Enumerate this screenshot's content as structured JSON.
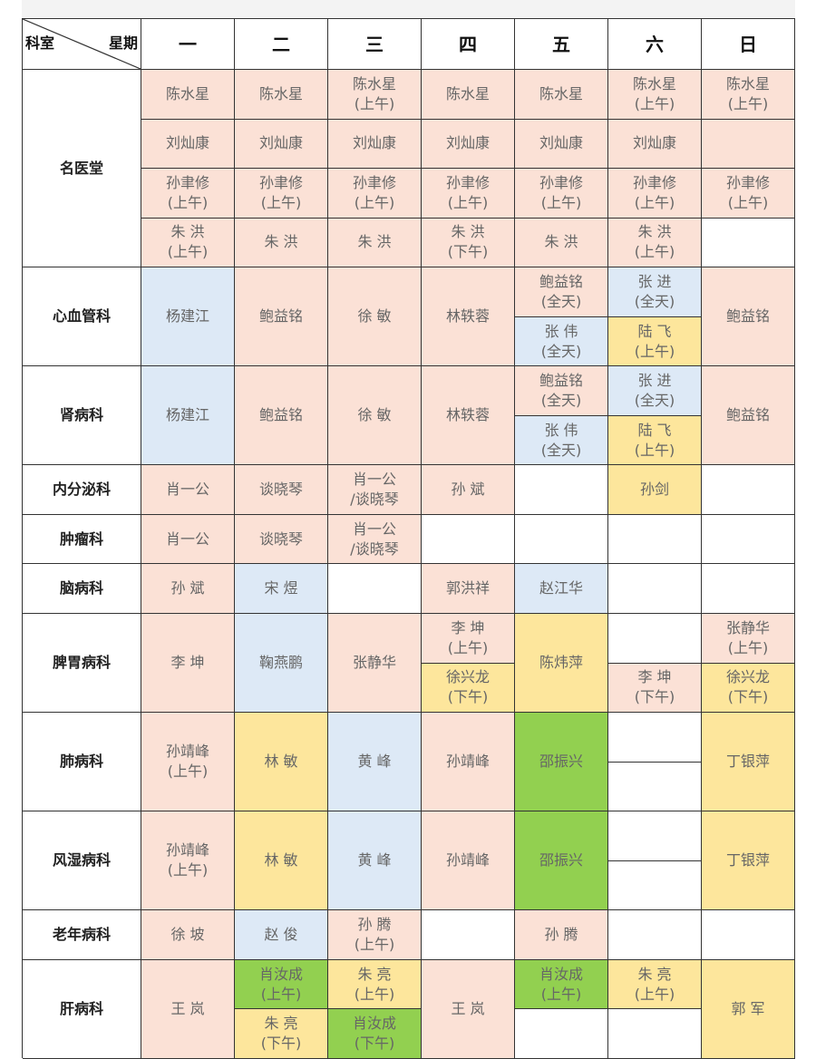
{
  "colors": {
    "pink": "#fbe1d6",
    "blue": "#dde9f6",
    "yellow": "#fde69c",
    "green": "#92d050",
    "white": "#ffffff"
  },
  "header": {
    "corner_left": "科室",
    "corner_right": "星期",
    "days": [
      "一",
      "二",
      "三",
      "四",
      "五",
      "六",
      "日"
    ]
  },
  "departments": [
    {
      "name": "名医堂",
      "slots": 4,
      "cells": [
        {
          "day": 0,
          "slot": 0,
          "span": 1,
          "name": "陈水星",
          "note": "",
          "color": "pink"
        },
        {
          "day": 1,
          "slot": 0,
          "span": 1,
          "name": "陈水星",
          "note": "",
          "color": "pink"
        },
        {
          "day": 2,
          "slot": 0,
          "span": 1,
          "name": "陈水星",
          "note": "(上午)",
          "color": "pink"
        },
        {
          "day": 3,
          "slot": 0,
          "span": 1,
          "name": "陈水星",
          "note": "",
          "color": "pink"
        },
        {
          "day": 4,
          "slot": 0,
          "span": 1,
          "name": "陈水星",
          "note": "",
          "color": "pink"
        },
        {
          "day": 5,
          "slot": 0,
          "span": 1,
          "name": "陈水星",
          "note": "(上午)",
          "color": "pink"
        },
        {
          "day": 6,
          "slot": 0,
          "span": 1,
          "name": "陈水星",
          "note": "(上午)",
          "color": "pink"
        },
        {
          "day": 0,
          "slot": 1,
          "span": 1,
          "name": "刘灿康",
          "note": "",
          "color": "pink"
        },
        {
          "day": 1,
          "slot": 1,
          "span": 1,
          "name": "刘灿康",
          "note": "",
          "color": "pink"
        },
        {
          "day": 2,
          "slot": 1,
          "span": 1,
          "name": "刘灿康",
          "note": "",
          "color": "pink"
        },
        {
          "day": 3,
          "slot": 1,
          "span": 1,
          "name": "刘灿康",
          "note": "",
          "color": "pink"
        },
        {
          "day": 4,
          "slot": 1,
          "span": 1,
          "name": "刘灿康",
          "note": "",
          "color": "pink"
        },
        {
          "day": 5,
          "slot": 1,
          "span": 1,
          "name": "刘灿康",
          "note": "",
          "color": "pink"
        },
        {
          "day": 6,
          "slot": 1,
          "span": 1,
          "name": "",
          "note": "",
          "color": "pink"
        },
        {
          "day": 0,
          "slot": 2,
          "span": 1,
          "name": "孙聿修",
          "note": "(上午)",
          "color": "pink"
        },
        {
          "day": 1,
          "slot": 2,
          "span": 1,
          "name": "孙聿修",
          "note": "(上午)",
          "color": "pink"
        },
        {
          "day": 2,
          "slot": 2,
          "span": 1,
          "name": "孙聿修",
          "note": "(上午)",
          "color": "pink"
        },
        {
          "day": 3,
          "slot": 2,
          "span": 1,
          "name": "孙聿修",
          "note": "(上午)",
          "color": "pink"
        },
        {
          "day": 4,
          "slot": 2,
          "span": 1,
          "name": "孙聿修",
          "note": "(上午)",
          "color": "pink"
        },
        {
          "day": 5,
          "slot": 2,
          "span": 1,
          "name": "孙聿修",
          "note": "(上午)",
          "color": "pink"
        },
        {
          "day": 6,
          "slot": 2,
          "span": 1,
          "name": "孙聿修",
          "note": "(上午)",
          "color": "pink"
        },
        {
          "day": 0,
          "slot": 3,
          "span": 1,
          "name": "朱 洪",
          "note": "(上午)",
          "color": "pink"
        },
        {
          "day": 1,
          "slot": 3,
          "span": 1,
          "name": "朱 洪",
          "note": "",
          "color": "pink"
        },
        {
          "day": 2,
          "slot": 3,
          "span": 1,
          "name": "朱 洪",
          "note": "",
          "color": "pink"
        },
        {
          "day": 3,
          "slot": 3,
          "span": 1,
          "name": "朱 洪",
          "note": "(下午)",
          "color": "pink"
        },
        {
          "day": 4,
          "slot": 3,
          "span": 1,
          "name": "朱 洪",
          "note": "",
          "color": "pink"
        },
        {
          "day": 5,
          "slot": 3,
          "span": 1,
          "name": "朱 洪",
          "note": "(上午)",
          "color": "pink"
        }
      ]
    },
    {
      "name": "心血管科",
      "slots": 2,
      "cells": [
        {
          "day": 0,
          "slot": 0,
          "span": 2,
          "name": "杨建江",
          "note": "",
          "color": "blue"
        },
        {
          "day": 1,
          "slot": 0,
          "span": 2,
          "name": "鲍益铭",
          "note": "",
          "color": "pink"
        },
        {
          "day": 2,
          "slot": 0,
          "span": 2,
          "name": "徐 敏",
          "note": "",
          "color": "pink"
        },
        {
          "day": 3,
          "slot": 0,
          "span": 2,
          "name": "林轶蓉",
          "note": "",
          "color": "pink"
        },
        {
          "day": 4,
          "slot": 0,
          "span": 1,
          "name": "鲍益铭",
          "note": "(全天)",
          "color": "pink"
        },
        {
          "day": 4,
          "slot": 1,
          "span": 1,
          "name": "张 伟",
          "note": "(全天)",
          "color": "blue"
        },
        {
          "day": 5,
          "slot": 0,
          "span": 1,
          "name": "张 进",
          "note": "(全天)",
          "color": "blue"
        },
        {
          "day": 5,
          "slot": 1,
          "span": 1,
          "name": "陆 飞",
          "note": "(上午)",
          "color": "yellow"
        },
        {
          "day": 6,
          "slot": 0,
          "span": 2,
          "name": "鲍益铭",
          "note": "",
          "color": "pink"
        }
      ]
    },
    {
      "name": "肾病科",
      "slots": 2,
      "cells": [
        {
          "day": 0,
          "slot": 0,
          "span": 2,
          "name": "杨建江",
          "note": "",
          "color": "blue"
        },
        {
          "day": 1,
          "slot": 0,
          "span": 2,
          "name": "鲍益铭",
          "note": "",
          "color": "pink"
        },
        {
          "day": 2,
          "slot": 0,
          "span": 2,
          "name": "徐 敏",
          "note": "",
          "color": "pink"
        },
        {
          "day": 3,
          "slot": 0,
          "span": 2,
          "name": "林轶蓉",
          "note": "",
          "color": "pink"
        },
        {
          "day": 4,
          "slot": 0,
          "span": 1,
          "name": "鲍益铭",
          "note": "(全天)",
          "color": "pink"
        },
        {
          "day": 4,
          "slot": 1,
          "span": 1,
          "name": "张 伟",
          "note": "(全天)",
          "color": "blue"
        },
        {
          "day": 5,
          "slot": 0,
          "span": 1,
          "name": "张 进",
          "note": "(全天)",
          "color": "blue"
        },
        {
          "day": 5,
          "slot": 1,
          "span": 1,
          "name": "陆 飞",
          "note": "(上午)",
          "color": "yellow"
        },
        {
          "day": 6,
          "slot": 0,
          "span": 2,
          "name": "鲍益铭",
          "note": "",
          "color": "pink"
        }
      ]
    },
    {
      "name": "内分泌科",
      "slots": 1,
      "cells": [
        {
          "day": 0,
          "slot": 0,
          "span": 1,
          "name": "肖一公",
          "note": "",
          "color": "pink"
        },
        {
          "day": 1,
          "slot": 0,
          "span": 1,
          "name": "谈晓琴",
          "note": "",
          "color": "pink"
        },
        {
          "day": 2,
          "slot": 0,
          "span": 1,
          "name": "肖一公",
          "note": "/谈晓琴",
          "color": "pink"
        },
        {
          "day": 3,
          "slot": 0,
          "span": 1,
          "name": "孙 斌",
          "note": "",
          "color": "pink"
        },
        {
          "day": 5,
          "slot": 0,
          "span": 1,
          "name": "孙剑",
          "note": "",
          "color": "yellow"
        }
      ]
    },
    {
      "name": "肿瘤科",
      "slots": 1,
      "cells": [
        {
          "day": 0,
          "slot": 0,
          "span": 1,
          "name": "肖一公",
          "note": "",
          "color": "pink"
        },
        {
          "day": 1,
          "slot": 0,
          "span": 1,
          "name": "谈晓琴",
          "note": "",
          "color": "pink"
        },
        {
          "day": 2,
          "slot": 0,
          "span": 1,
          "name": "肖一公",
          "note": "/谈晓琴",
          "color": "pink"
        }
      ]
    },
    {
      "name": "脑病科",
      "slots": 1,
      "cells": [
        {
          "day": 0,
          "slot": 0,
          "span": 1,
          "name": "孙 斌",
          "note": "",
          "color": "pink"
        },
        {
          "day": 1,
          "slot": 0,
          "span": 1,
          "name": "宋 煜",
          "note": "",
          "color": "blue"
        },
        {
          "day": 3,
          "slot": 0,
          "span": 1,
          "name": "郭洪祥",
          "note": "",
          "color": "pink"
        },
        {
          "day": 4,
          "slot": 0,
          "span": 1,
          "name": "赵江华",
          "note": "",
          "color": "blue"
        }
      ]
    },
    {
      "name": "脾胃病科",
      "slots": 2,
      "cells": [
        {
          "day": 0,
          "slot": 0,
          "span": 2,
          "name": "李 坤",
          "note": "",
          "color": "pink"
        },
        {
          "day": 1,
          "slot": 0,
          "span": 2,
          "name": "鞠燕鹏",
          "note": "",
          "color": "blue"
        },
        {
          "day": 2,
          "slot": 0,
          "span": 2,
          "name": "张静华",
          "note": "",
          "color": "pink"
        },
        {
          "day": 3,
          "slot": 0,
          "span": 1,
          "name": "李 坤",
          "note": "(上午)",
          "color": "pink"
        },
        {
          "day": 3,
          "slot": 1,
          "span": 1,
          "name": "徐兴龙",
          "note": "(下午)",
          "color": "yellow"
        },
        {
          "day": 4,
          "slot": 0,
          "span": 2,
          "name": "陈炜萍",
          "note": "",
          "color": "yellow"
        },
        {
          "day": 5,
          "slot": 1,
          "span": 1,
          "name": "李 坤",
          "note": "(下午)",
          "color": "pink"
        },
        {
          "day": 6,
          "slot": 0,
          "span": 1,
          "name": "张静华",
          "note": "(上午)",
          "color": "pink"
        },
        {
          "day": 6,
          "slot": 1,
          "span": 1,
          "name": "徐兴龙",
          "note": "(下午)",
          "color": "yellow"
        }
      ]
    },
    {
      "name": "肺病科",
      "slots": 2,
      "cells": [
        {
          "day": 0,
          "slot": 0,
          "span": 2,
          "name": "孙靖峰",
          "note": "(上午)",
          "color": "pink"
        },
        {
          "day": 1,
          "slot": 0,
          "span": 2,
          "name": "林 敏",
          "note": "",
          "color": "yellow"
        },
        {
          "day": 2,
          "slot": 0,
          "span": 2,
          "name": "黄 峰",
          "note": "",
          "color": "blue"
        },
        {
          "day": 3,
          "slot": 0,
          "span": 2,
          "name": "孙靖峰",
          "note": "",
          "color": "pink"
        },
        {
          "day": 4,
          "slot": 0,
          "span": 2,
          "name": "邵振兴",
          "note": "",
          "color": "green"
        },
        {
          "day": 6,
          "slot": 0,
          "span": 2,
          "name": "丁银萍",
          "note": "",
          "color": "yellow"
        }
      ]
    },
    {
      "name": "风湿病科",
      "slots": 2,
      "cells": [
        {
          "day": 0,
          "slot": 0,
          "span": 2,
          "name": "孙靖峰",
          "note": "(上午)",
          "color": "pink"
        },
        {
          "day": 1,
          "slot": 0,
          "span": 2,
          "name": "林 敏",
          "note": "",
          "color": "yellow"
        },
        {
          "day": 2,
          "slot": 0,
          "span": 2,
          "name": "黄 峰",
          "note": "",
          "color": "blue"
        },
        {
          "day": 3,
          "slot": 0,
          "span": 2,
          "name": "孙靖峰",
          "note": "",
          "color": "pink"
        },
        {
          "day": 4,
          "slot": 0,
          "span": 2,
          "name": "邵振兴",
          "note": "",
          "color": "green"
        },
        {
          "day": 6,
          "slot": 0,
          "span": 2,
          "name": "丁银萍",
          "note": "",
          "color": "yellow"
        }
      ]
    },
    {
      "name": "老年病科",
      "slots": 1,
      "cells": [
        {
          "day": 0,
          "slot": 0,
          "span": 1,
          "name": "徐 坡",
          "note": "",
          "color": "pink"
        },
        {
          "day": 1,
          "slot": 0,
          "span": 1,
          "name": "赵 俊",
          "note": "",
          "color": "blue"
        },
        {
          "day": 2,
          "slot": 0,
          "span": 1,
          "name": "孙 腾",
          "note": "(上午)",
          "color": "pink"
        },
        {
          "day": 4,
          "slot": 0,
          "span": 1,
          "name": "孙 腾",
          "note": "",
          "color": "pink"
        }
      ]
    },
    {
      "name": "肝病科",
      "slots": 2,
      "cells": [
        {
          "day": 0,
          "slot": 0,
          "span": 2,
          "name": "王 岚",
          "note": "",
          "color": "pink"
        },
        {
          "day": 1,
          "slot": 0,
          "span": 1,
          "name": "肖汝成",
          "note": "(上午)",
          "color": "green"
        },
        {
          "day": 1,
          "slot": 1,
          "span": 1,
          "name": "朱 亮",
          "note": "(下午)",
          "color": "yellow"
        },
        {
          "day": 2,
          "slot": 0,
          "span": 1,
          "name": "朱 亮",
          "note": "(上午)",
          "color": "yellow"
        },
        {
          "day": 2,
          "slot": 1,
          "span": 1,
          "name": "肖汝成",
          "note": "(下午)",
          "color": "green"
        },
        {
          "day": 3,
          "slot": 0,
          "span": 2,
          "name": "王 岚",
          "note": "",
          "color": "pink"
        },
        {
          "day": 4,
          "slot": 0,
          "span": 1,
          "name": "肖汝成",
          "note": "(上午)",
          "color": "green"
        },
        {
          "day": 5,
          "slot": 0,
          "span": 1,
          "name": "朱 亮",
          "note": "(上午)",
          "color": "yellow"
        },
        {
          "day": 6,
          "slot": 0,
          "span": 2,
          "name": "郭 军",
          "note": "",
          "color": "yellow"
        }
      ]
    }
  ]
}
